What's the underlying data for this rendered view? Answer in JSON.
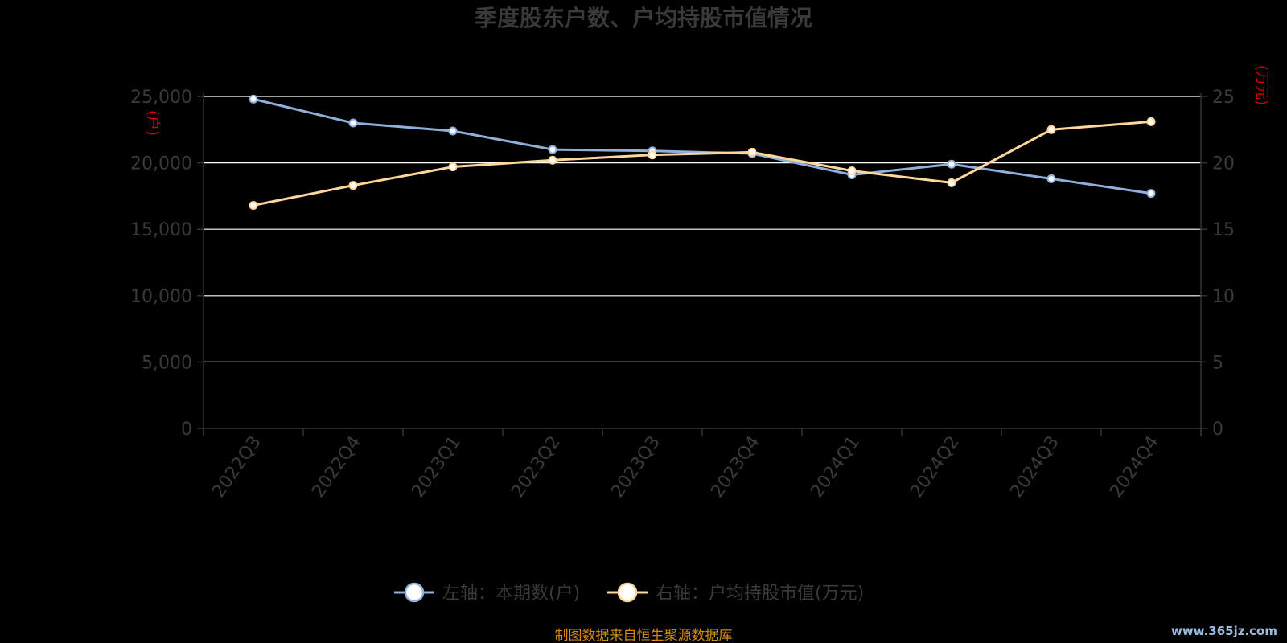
{
  "chart_data": {
    "type": "line",
    "title": "季度股东户数、户均持股市值情况",
    "categories": [
      "2022Q3",
      "2022Q4",
      "2023Q1",
      "2023Q2",
      "2023Q3",
      "2023Q4",
      "2024Q1",
      "2024Q2",
      "2024Q3",
      "2024Q4"
    ],
    "left_axis": {
      "unit": "(户)",
      "min": 0,
      "max": 25000,
      "ticks": [
        "0",
        "5,000",
        "10,000",
        "15,000",
        "20,000",
        "25,000"
      ]
    },
    "right_axis": {
      "unit": "(万元)",
      "min": 0,
      "max": 25,
      "ticks": [
        "0",
        "5",
        "10",
        "15",
        "20",
        "25"
      ]
    },
    "series": [
      {
        "name": "左轴：本期数(户)",
        "axis": "left",
        "color": "#8fb0dd",
        "values": [
          24800,
          23000,
          22400,
          21000,
          20900,
          20700,
          19100,
          19900,
          18800,
          17700
        ]
      },
      {
        "name": "右轴：户均持股市值(万元)",
        "axis": "right",
        "color": "#ffd79a",
        "values": [
          16.8,
          18.3,
          19.7,
          20.2,
          20.6,
          20.8,
          19.4,
          18.5,
          22.5,
          23.1
        ]
      }
    ],
    "grid": true,
    "legend_position": "bottom-center",
    "source": "制图数据来自恒生聚源数据库",
    "watermark": "www.365jz.com"
  }
}
